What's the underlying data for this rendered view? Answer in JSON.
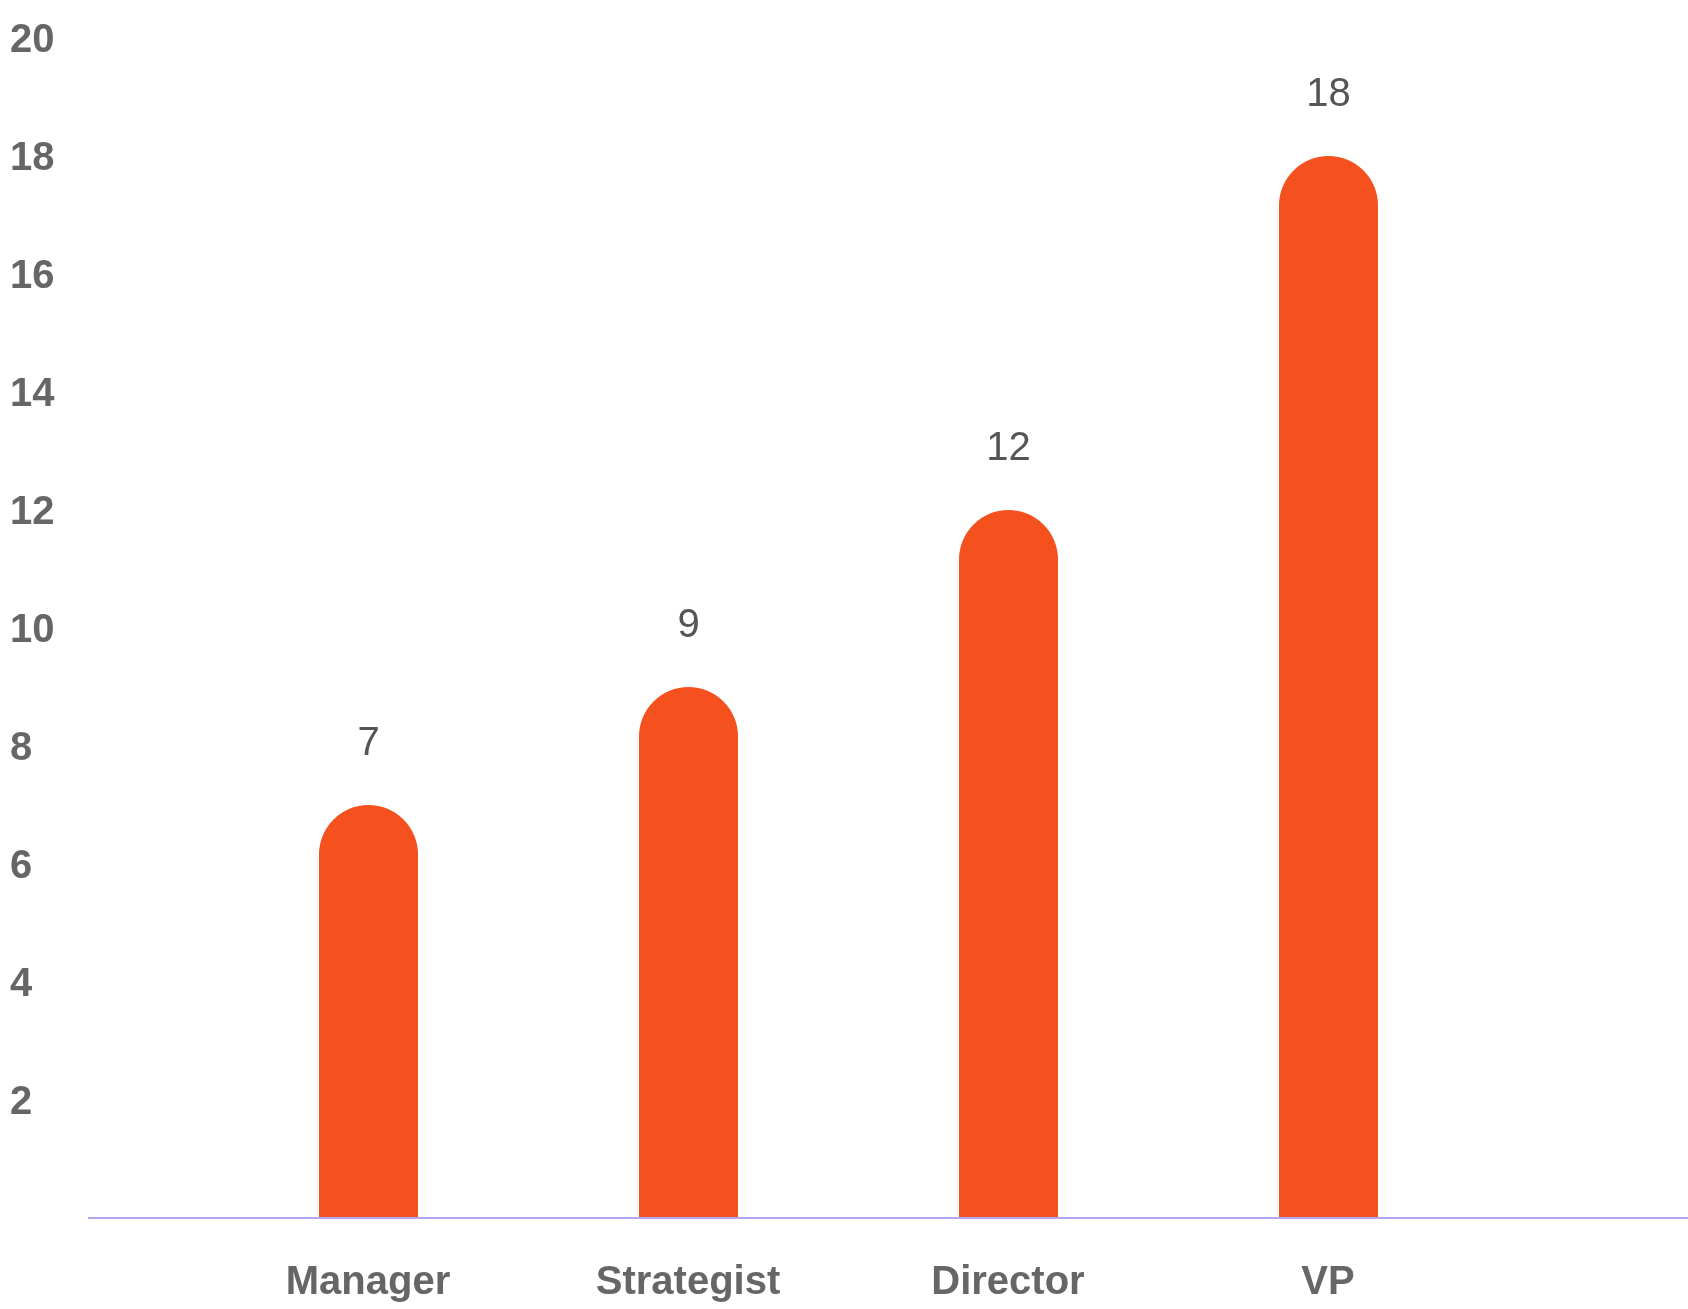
{
  "chart_data": {
    "type": "bar",
    "categories": [
      "Manager",
      "Strategist",
      "Director",
      "VP"
    ],
    "values": [
      7,
      9,
      12,
      18
    ],
    "color": "#f4511e",
    "ylim": [
      0,
      20
    ],
    "yticks": [
      2,
      4,
      6,
      8,
      10,
      12,
      14,
      16,
      18,
      20
    ],
    "data_labels": true
  }
}
